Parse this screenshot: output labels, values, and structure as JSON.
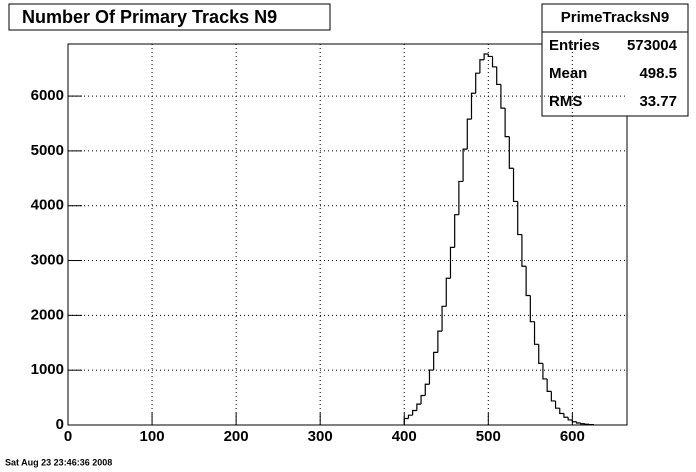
{
  "chart_data": {
    "type": "histogram",
    "title": "Number Of Primary Tracks N9",
    "color": "#000000",
    "bins": [
      400,
      405,
      410,
      415,
      420,
      425,
      430,
      435,
      440,
      445,
      450,
      455,
      460,
      465,
      470,
      475,
      480,
      485,
      490,
      495,
      500,
      505,
      510,
      515,
      520,
      525,
      530,
      535,
      540,
      545,
      550,
      555,
      560,
      565,
      570,
      575,
      580,
      585,
      590,
      595,
      600,
      605,
      610,
      615,
      620,
      625
    ],
    "values": [
      119,
      179,
      264,
      381,
      538,
      743,
      1002,
      1325,
      1712,
      2165,
      2677,
      3240,
      3836,
      4443,
      5033,
      5580,
      6052,
      6418,
      6663,
      6767,
      6723,
      6534,
      6212,
      5780,
      5260,
      4684,
      4078,
      3474,
      2896,
      2362,
      1885,
      1472,
      1124,
      840,
      614,
      439,
      307,
      210,
      141,
      92,
      59,
      37,
      23,
      14,
      8
    ],
    "xlim": [
      0,
      665
    ],
    "xticks": [
      0,
      100,
      200,
      300,
      400,
      500,
      600
    ],
    "ylim": [
      0,
      6950
    ],
    "yticks": [
      0,
      1000,
      2000,
      3000,
      4000,
      5000,
      6000
    ],
    "grid": true,
    "stats": {
      "title": "PrimeTracksN9",
      "rows": [
        {
          "label": "Entries",
          "value": 573004
        },
        {
          "label": "Mean",
          "value": 498.5
        },
        {
          "label": "RMS",
          "value": 33.77
        }
      ]
    },
    "footer": "Sat Aug 23 23:46:36 2008"
  }
}
